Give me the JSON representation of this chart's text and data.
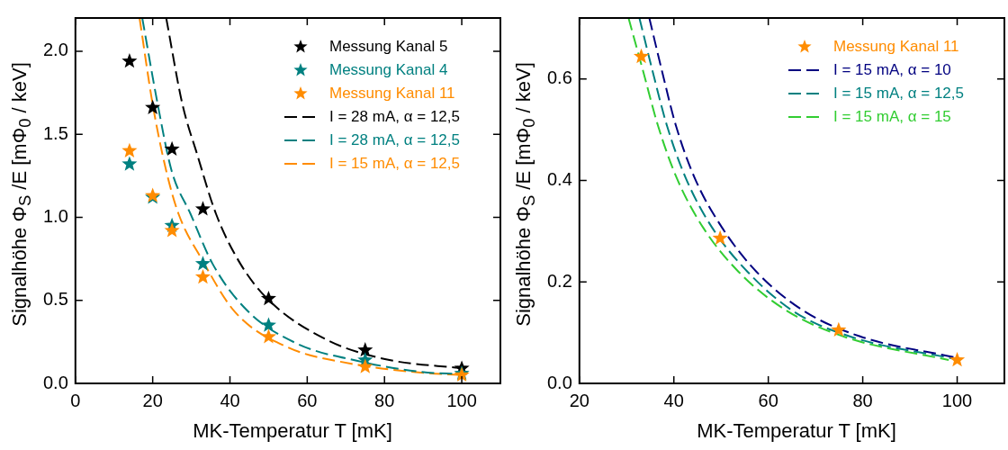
{
  "chart_data": [
    {
      "type": "scatter",
      "xlabel": "MK-Temperatur T [mK]",
      "ylabel": "Signalhöhe Φ$_{S}$ /E  [mΦ$_{0}$ / keV]",
      "xlim": [
        0,
        110
      ],
      "xticks": [
        0,
        20,
        40,
        60,
        80,
        100
      ],
      "ylim": [
        0,
        2.2
      ],
      "yticks": [
        {
          "value": 0,
          "label": "0.0"
        },
        0.5,
        {
          "value": 1,
          "label": "1.0"
        },
        1.5,
        {
          "value": 2,
          "label": "2.0"
        }
      ],
      "grid": false,
      "legend": "top right",
      "series": [
        {
          "name": "Messung Kanal 5",
          "marker": "star",
          "color": "#000000",
          "x": [
            14,
            20,
            25,
            33,
            50,
            75,
            100
          ],
          "values": [
            1.94,
            1.66,
            1.41,
            1.05,
            0.51,
            0.2,
            0.09
          ]
        },
        {
          "name": "Messung Kanal 4",
          "marker": "star",
          "color": "#008080",
          "x": [
            14,
            20,
            25,
            33,
            50,
            75,
            100
          ],
          "values": [
            1.32,
            1.12,
            0.95,
            0.72,
            0.35,
            0.14,
            0.06
          ]
        },
        {
          "name": "Messung Kanal 11",
          "marker": "star",
          "color": "#ff8c00",
          "x": [
            14,
            20,
            25,
            33,
            50,
            75,
            100
          ],
          "values": [
            1.4,
            1.13,
            0.92,
            0.64,
            0.28,
            0.1,
            0.05
          ]
        },
        {
          "name": "I = 28 mA, α = 12,5",
          "type": "line",
          "marker": "none",
          "line_style": "dashed",
          "color": "#000000",
          "x": [
            23.5,
            27.7,
            31.5,
            36.4,
            42.7,
            50.1,
            65.3,
            80.4,
            100.4
          ],
          "values": [
            2.2,
            1.68,
            1.38,
            1.02,
            0.72,
            0.5,
            0.26,
            0.145,
            0.09
          ]
        },
        {
          "name": "I = 28 mA, α = 12,5",
          "type": "line",
          "marker": "none",
          "line_style": "dashed",
          "color": "#008080",
          "x": [
            17.3,
            21.3,
            24.9,
            29.8,
            35.5,
            44.4,
            57.3,
            73.3,
            89.3,
            100
          ],
          "values": [
            2.2,
            1.68,
            1.28,
            1.02,
            0.72,
            0.44,
            0.24,
            0.134,
            0.07,
            0.055
          ]
        },
        {
          "name": "I = 15 mA, α = 12,5",
          "type": "line",
          "marker": "none",
          "line_style": "dashed",
          "color": "#ff8c00",
          "x": [
            16.6,
            20,
            23.5,
            26.7,
            32.9,
            41.3,
            54.7,
            71.5,
            89.3,
            100.4
          ],
          "values": [
            2.2,
            1.68,
            1.28,
            1.02,
            0.74,
            0.43,
            0.22,
            0.118,
            0.065,
            0.05
          ]
        }
      ]
    },
    {
      "type": "scatter",
      "xlabel": "MK-Temperatur T [mK]",
      "ylabel": "Signalhöhe Φ$_{S}$ /E  [mΦ$_{0}$ / keV]",
      "xlim": [
        20,
        110
      ],
      "xticks": [
        20,
        40,
        60,
        80,
        100
      ],
      "ylim": [
        0,
        0.72
      ],
      "yticks": [
        {
          "value": 0,
          "label": "0.0"
        },
        0.2,
        0.4,
        0.6
      ],
      "grid": false,
      "legend": "top right",
      "series": [
        {
          "name": "Messung Kanal 11",
          "marker": "star",
          "color": "#ff8c00",
          "x": [
            33.1,
            49.8,
            74.9,
            100
          ],
          "values": [
            0.644,
            0.286,
            0.105,
            0.046
          ]
        },
        {
          "name": "I = 15 mA, α = 10",
          "type": "line",
          "marker": "none",
          "line_style": "dashed",
          "color": "#000080",
          "x": [
            34.8,
            37.5,
            40.4,
            44.4,
            50.2,
            57.5,
            67.3,
            79.3,
            99.6
          ],
          "values": [
            0.72,
            0.615,
            0.509,
            0.405,
            0.307,
            0.22,
            0.144,
            0.093,
            0.051
          ]
        },
        {
          "name": "I = 15 mA, α = 12,5",
          "type": "line",
          "marker": "none",
          "line_style": "dashed",
          "color": "#008080",
          "x": [
            32.7,
            35.5,
            38.5,
            42.5,
            48.1,
            55.6,
            65.5,
            77.8,
            99.6
          ],
          "values": [
            0.72,
            0.615,
            0.509,
            0.405,
            0.307,
            0.22,
            0.141,
            0.091,
            0.048
          ]
        },
        {
          "name": "I = 15 mA, α = 15",
          "type": "line",
          "marker": "none",
          "line_style": "dashed",
          "color": "#32cd32",
          "x": [
            30.4,
            33.5,
            36.6,
            40.6,
            46.2,
            53.7,
            63.6,
            76.4,
            98.2
          ],
          "values": [
            0.72,
            0.615,
            0.509,
            0.405,
            0.307,
            0.22,
            0.145,
            0.091,
            0.046
          ]
        }
      ]
    }
  ]
}
